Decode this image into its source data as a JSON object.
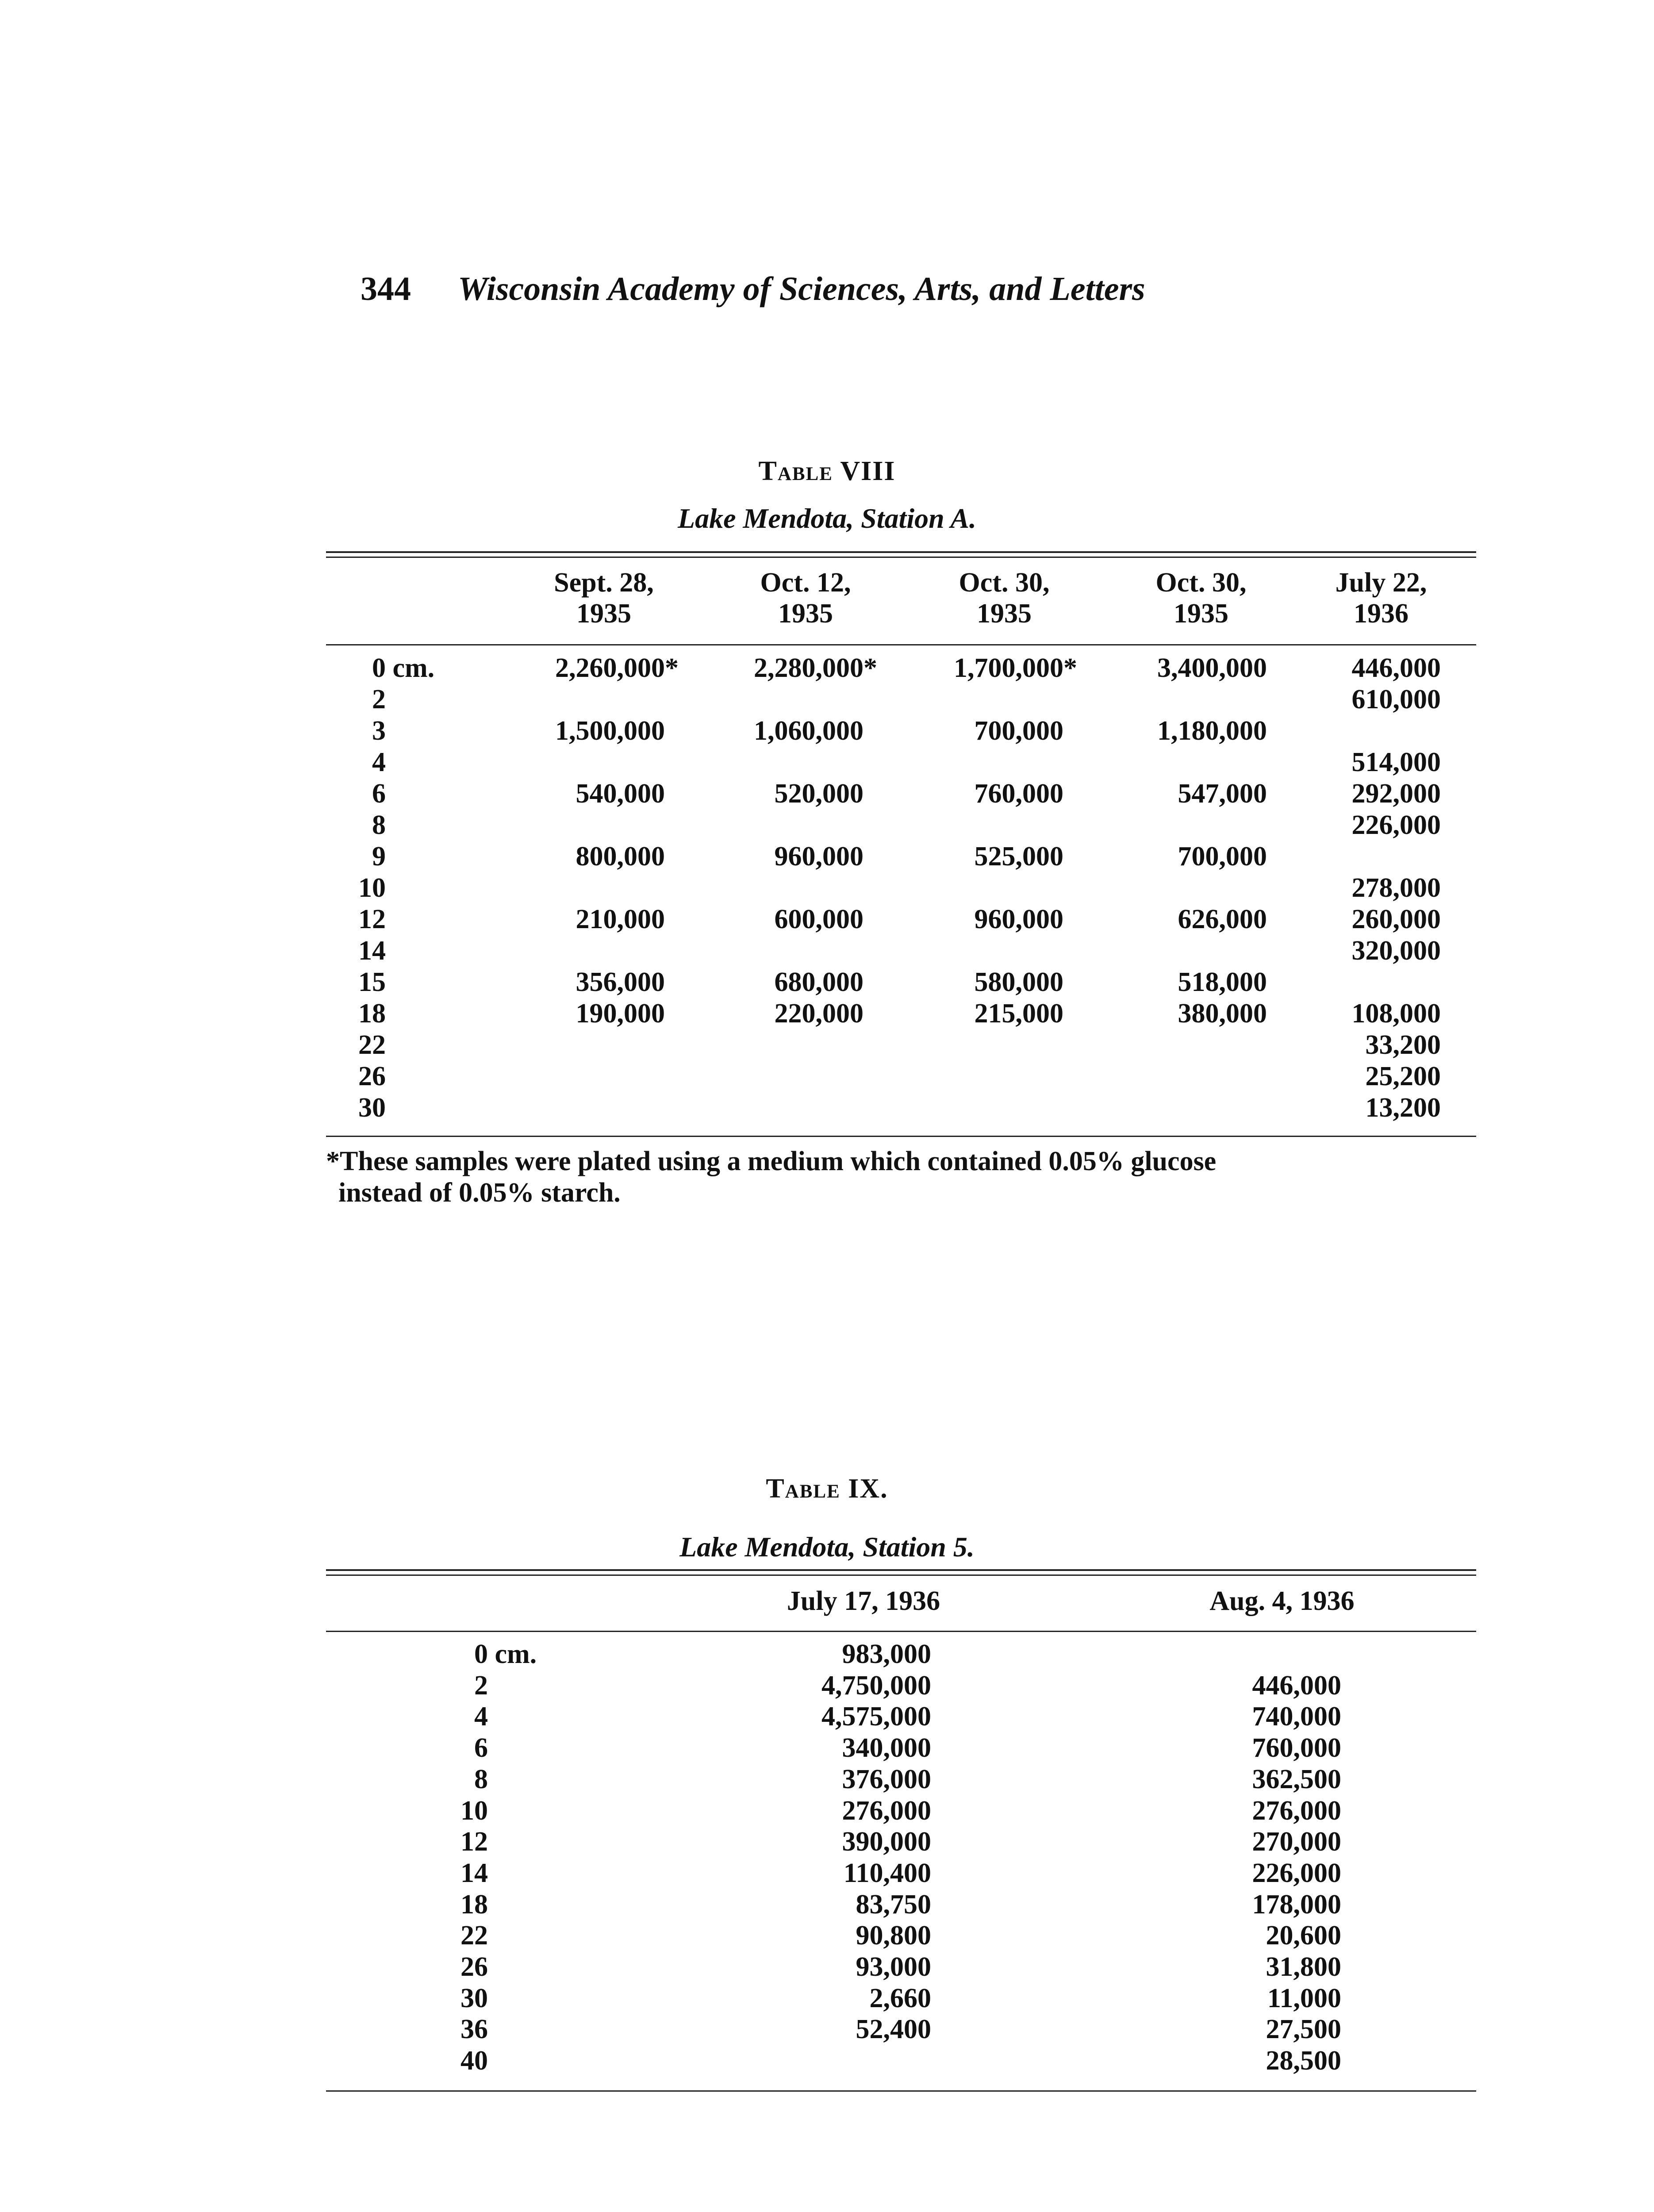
{
  "page": {
    "number": "344",
    "running_head": "Wisconsin Academy of Sciences, Arts, and Letters"
  },
  "table8": {
    "title": "Table VIII",
    "subtitle": "Lake Mendota, Station A.",
    "columns": [
      {
        "line1": "Sept. 28,",
        "line2": "1935"
      },
      {
        "line1": "Oct. 12,",
        "line2": "1935"
      },
      {
        "line1": "Oct. 30,",
        "line2": "1935"
      },
      {
        "line1": "Oct. 30,",
        "line2": "1935"
      },
      {
        "line1": "July 22,",
        "line2": "1936"
      }
    ],
    "rows": [
      {
        "depth": "0 cm.",
        "values": [
          "2,260,000*",
          "2,280,000*",
          "1,700,000*",
          "3,400,000",
          "446,000"
        ]
      },
      {
        "depth": "2",
        "values": [
          "",
          "",
          "",
          "",
          "610,000"
        ]
      },
      {
        "depth": "3",
        "values": [
          "1,500,000",
          "1,060,000",
          "700,000",
          "1,180,000",
          ""
        ]
      },
      {
        "depth": "4",
        "values": [
          "",
          "",
          "",
          "",
          "514,000"
        ]
      },
      {
        "depth": "6",
        "values": [
          "540,000",
          "520,000",
          "760,000",
          "547,000",
          "292,000"
        ]
      },
      {
        "depth": "8",
        "values": [
          "",
          "",
          "",
          "",
          "226,000"
        ]
      },
      {
        "depth": "9",
        "values": [
          "800,000",
          "960,000",
          "525,000",
          "700,000",
          ""
        ]
      },
      {
        "depth": "10",
        "values": [
          "",
          "",
          "",
          "",
          "278,000"
        ]
      },
      {
        "depth": "12",
        "values": [
          "210,000",
          "600,000",
          "960,000",
          "626,000",
          "260,000"
        ]
      },
      {
        "depth": "14",
        "values": [
          "",
          "",
          "",
          "",
          "320,000"
        ]
      },
      {
        "depth": "15",
        "values": [
          "356,000",
          "680,000",
          "580,000",
          "518,000",
          ""
        ]
      },
      {
        "depth": "18",
        "values": [
          "190,000",
          "220,000",
          "215,000",
          "380,000",
          "108,000"
        ]
      },
      {
        "depth": "22",
        "values": [
          "",
          "",
          "",
          "",
          "33,200"
        ]
      },
      {
        "depth": "26",
        "values": [
          "",
          "",
          "",
          "",
          "25,200"
        ]
      },
      {
        "depth": "30",
        "values": [
          "",
          "",
          "",
          "",
          "13,200"
        ]
      }
    ],
    "footnote_line1": "*These samples were plated using a medium which contained 0.05% glucose",
    "footnote_line2": "instead of 0.05% starch."
  },
  "table9": {
    "title": "Table IX.",
    "subtitle": "Lake Mendota, Station 5.",
    "columns": [
      "July 17, 1936",
      "Aug. 4, 1936"
    ],
    "rows": [
      {
        "depth": "0 cm.",
        "values": [
          "983,000",
          ""
        ]
      },
      {
        "depth": "2",
        "values": [
          "4,750,000",
          "446,000"
        ]
      },
      {
        "depth": "4",
        "values": [
          "4,575,000",
          "740,000"
        ]
      },
      {
        "depth": "6",
        "values": [
          "340,000",
          "760,000"
        ]
      },
      {
        "depth": "8",
        "values": [
          "376,000",
          "362,500"
        ]
      },
      {
        "depth": "10",
        "values": [
          "276,000",
          "276,000"
        ]
      },
      {
        "depth": "12",
        "values": [
          "390,000",
          "270,000"
        ]
      },
      {
        "depth": "14",
        "values": [
          "110,400",
          "226,000"
        ]
      },
      {
        "depth": "18",
        "values": [
          "83,750",
          "178,000"
        ]
      },
      {
        "depth": "22",
        "values": [
          "90,800",
          "20,600"
        ]
      },
      {
        "depth": "26",
        "values": [
          "93,000",
          "31,800"
        ]
      },
      {
        "depth": "30",
        "values": [
          "2,660",
          "11,000"
        ]
      },
      {
        "depth": "36",
        "values": [
          "52,400",
          "27,500"
        ]
      },
      {
        "depth": "40",
        "values": [
          "",
          "28,500"
        ]
      }
    ]
  }
}
